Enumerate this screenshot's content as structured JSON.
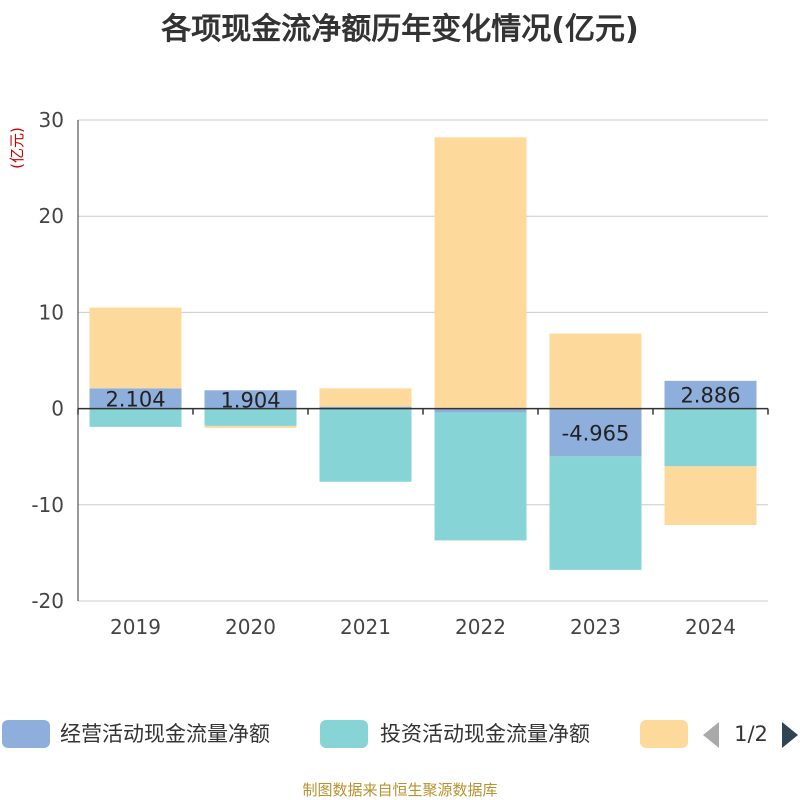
{
  "chart_data": {
    "type": "bar",
    "stacked": true,
    "title": "各项现金流净额历年变化情况(亿元)",
    "ylabel": "(亿元)",
    "xlabel": "",
    "categories": [
      "2019",
      "2020",
      "2021",
      "2022",
      "2023",
      "2024"
    ],
    "ylim": [
      -20,
      30
    ],
    "yticks": [
      -20,
      -10,
      0,
      10,
      20,
      30
    ],
    "series": [
      {
        "name": "经营活动现金流量净额",
        "color": "#8eaedb",
        "values": [
          2.104,
          1.904,
          0.2,
          -0.4,
          -4.965,
          2.886
        ],
        "labels": [
          "2.104",
          "1.904",
          "",
          "",
          "-4.965",
          "2.886"
        ]
      },
      {
        "name": "投资活动现金流量净额",
        "color": "#86d4d6",
        "values": [
          -1.9,
          -1.8,
          -7.6,
          -13.3,
          -11.8,
          -6.0
        ]
      },
      {
        "name": "",
        "color": "#fdd99b",
        "values": [
          8.4,
          -0.2,
          1.9,
          28.2,
          7.8,
          -6.1
        ]
      }
    ],
    "legend": {
      "position": "bottom",
      "page": "1/2"
    },
    "source": "制图数据来自恒生聚源数据库"
  }
}
